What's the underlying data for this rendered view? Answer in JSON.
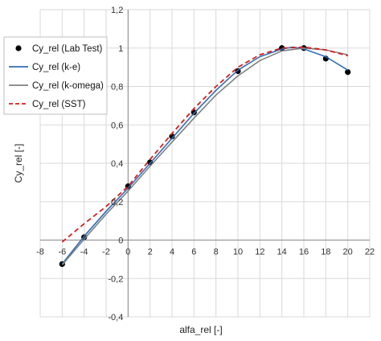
{
  "chart_data": {
    "type": "line",
    "xlabel": "alfa_rel [-]",
    "ylabel": "Cy_rel [-]",
    "xlim": [
      -8,
      22
    ],
    "ylim": [
      -0.4,
      1.2
    ],
    "x_ticks": [
      -8,
      -6,
      -4,
      -2,
      0,
      2,
      4,
      6,
      8,
      10,
      12,
      14,
      16,
      18,
      20,
      22
    ],
    "y_ticks": [
      -0.4,
      -0.2,
      0,
      0.2,
      0.4,
      0.6,
      0.8,
      1,
      1.2
    ],
    "x_tick_labels": [
      "-8",
      "-6",
      "-4",
      "-2",
      "0",
      "2",
      "4",
      "6",
      "8",
      "10",
      "12",
      "14",
      "16",
      "18",
      "20",
      "22"
    ],
    "y_tick_labels": [
      "-0,4",
      "-0,2",
      "0",
      "0,2",
      "0,4",
      "0,6",
      "0,8",
      "1",
      "1,2"
    ],
    "grid": true,
    "legend_position": "top-left",
    "series": [
      {
        "name": "Cy_rel (Lab Test)",
        "style": "markers",
        "color": "#000000",
        "x": [
          -6,
          -4,
          0,
          2,
          4,
          6,
          10,
          14,
          16,
          18,
          20
        ],
        "y": [
          -0.125,
          0.015,
          0.28,
          0.405,
          0.54,
          0.665,
          0.88,
          1.0,
          1.0,
          0.945,
          0.875
        ]
      },
      {
        "name": "Cy_rel (k-e)",
        "style": "solid",
        "color": "#2e6db4",
        "x": [
          -6,
          -4,
          -2,
          0,
          2,
          4,
          6,
          8,
          10,
          12,
          14,
          15,
          16,
          18,
          20
        ],
        "y": [
          -0.125,
          0.02,
          0.15,
          0.27,
          0.4,
          0.53,
          0.66,
          0.78,
          0.885,
          0.955,
          0.995,
          1.005,
          0.995,
          0.955,
          0.885
        ]
      },
      {
        "name": "Cy_rel (k-omega)",
        "style": "solid",
        "color": "#808080",
        "x": [
          -6,
          -4,
          -2,
          0,
          2,
          4,
          6,
          8,
          10,
          12,
          14,
          16,
          18,
          20
        ],
        "y": [
          -0.13,
          0.005,
          0.135,
          0.255,
          0.385,
          0.51,
          0.635,
          0.755,
          0.855,
          0.935,
          0.985,
          1.0,
          0.99,
          0.965
        ]
      },
      {
        "name": "Cy_rel (SST)",
        "style": "dashed",
        "color": "#d42020",
        "x": [
          -6,
          -4,
          -2,
          0,
          2,
          4,
          6,
          8,
          10,
          12,
          14,
          16,
          18,
          20
        ],
        "y": [
          -0.01,
          0.085,
          0.175,
          0.28,
          0.42,
          0.555,
          0.685,
          0.8,
          0.9,
          0.965,
          1.0,
          1.005,
          0.99,
          0.96
        ]
      }
    ]
  }
}
